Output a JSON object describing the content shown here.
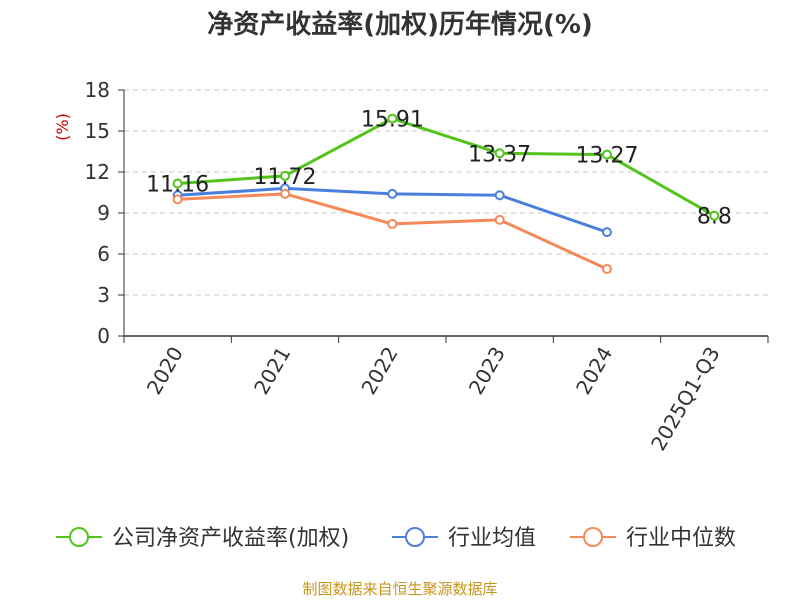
{
  "chart_data": {
    "type": "line",
    "title": "净资产收益率(加权)历年情况(%)",
    "ylabel": "(%)",
    "ylim": [
      0,
      18
    ],
    "yticks": [
      0,
      3,
      6,
      9,
      12,
      15,
      18
    ],
    "grid": true,
    "categories": [
      "2020",
      "2021",
      "2022",
      "2023",
      "2024",
      "2025Q1-Q3"
    ],
    "series": [
      {
        "name": "公司净资产收益率(加权)",
        "color": "#52c41a",
        "values": [
          11.16,
          11.72,
          15.91,
          13.37,
          13.27,
          8.8
        ],
        "labels": [
          "11.16",
          "11.72",
          "15.91",
          "13.37",
          "13.27",
          "8.8"
        ]
      },
      {
        "name": "行业均值",
        "color": "#4a7fdc",
        "values": [
          10.3,
          10.8,
          10.4,
          10.3,
          7.6,
          null
        ]
      },
      {
        "name": "行业中位数",
        "color": "#f5895a",
        "values": [
          10.0,
          10.4,
          8.2,
          8.5,
          4.9,
          null
        ]
      }
    ],
    "legend_position": "bottom"
  },
  "source": "制图数据来自恒生聚源数据库"
}
